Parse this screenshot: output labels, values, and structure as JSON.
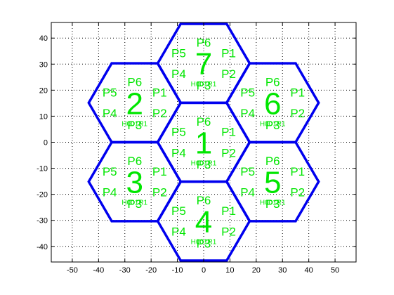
{
  "chart_data": {
    "type": "hexagonal-cell-layout",
    "xlim": [
      -58,
      58
    ],
    "ylim": [
      -46,
      46
    ],
    "x_ticks": [
      -50,
      -40,
      -30,
      -20,
      -10,
      0,
      10,
      20,
      30,
      40,
      50
    ],
    "y_ticks": [
      40,
      30,
      20,
      10,
      0,
      -10,
      -20,
      -30,
      -40
    ],
    "x_tick_labels": [
      "-50",
      "-40",
      "-30",
      "-20",
      "-10",
      "0",
      "10",
      "20",
      "30",
      "40",
      "50"
    ],
    "y_tick_labels": [
      "40",
      "30",
      "20",
      "10",
      "0",
      "-10",
      "-20",
      "-30",
      "-40"
    ],
    "grid": true,
    "hex_radius": 17.5,
    "hex_color": "#0000ee",
    "label_color": "#00e600",
    "sectors": [
      "P1",
      "P2",
      "P3",
      "P4",
      "P5",
      "P6"
    ],
    "cell_tag": "H001R1",
    "cells": [
      {
        "id": "1",
        "x": 0,
        "y": 0
      },
      {
        "id": "2",
        "x": -26.25,
        "y": 15.15
      },
      {
        "id": "3",
        "x": -26.25,
        "y": -15.15
      },
      {
        "id": "4",
        "x": 0,
        "y": -30.3
      },
      {
        "id": "5",
        "x": 26.25,
        "y": -15.15
      },
      {
        "id": "6",
        "x": 26.25,
        "y": 15.15
      },
      {
        "id": "7",
        "x": 0,
        "y": 30.3
      }
    ]
  }
}
